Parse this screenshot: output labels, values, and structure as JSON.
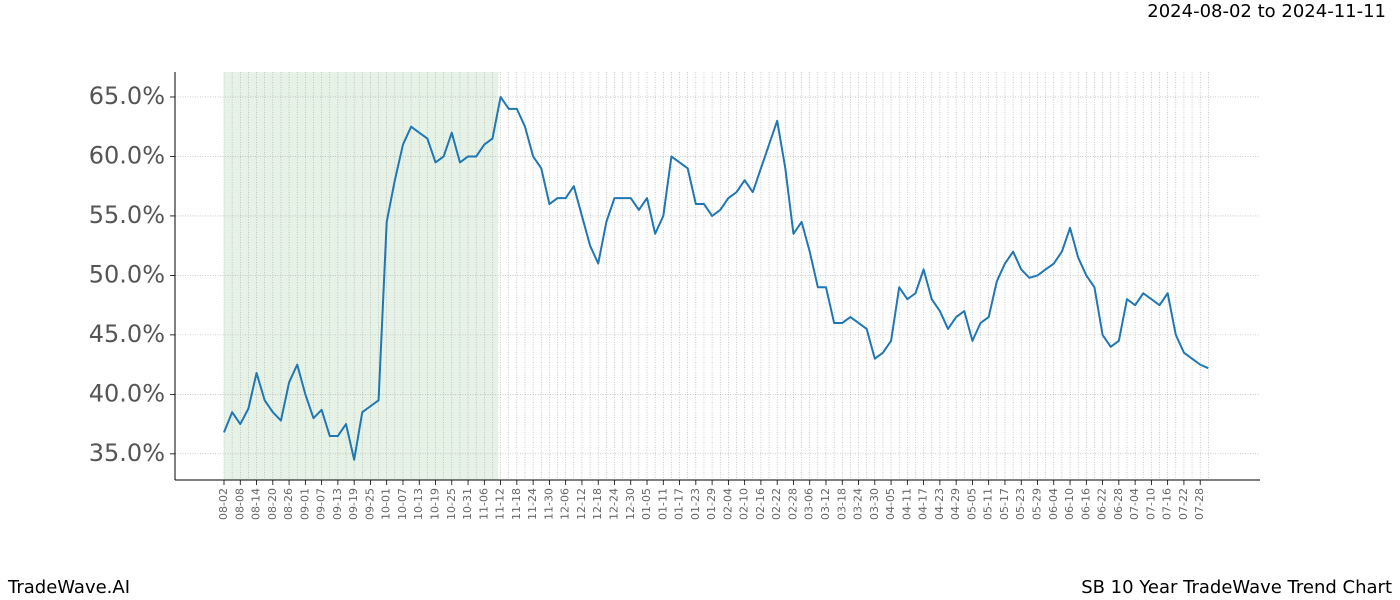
{
  "chart_data": {
    "type": "line",
    "subtitle": "2024-08-02 to 2024-11-11",
    "footer_left": "TradeWave.AI",
    "footer_right": "SB 10 Year TradeWave Trend Chart",
    "categories": [
      "08-02",
      null,
      "08-08",
      null,
      "08-14",
      null,
      "08-20",
      null,
      "08-26",
      null,
      "09-01",
      null,
      "09-07",
      null,
      "09-13",
      null,
      "09-19",
      null,
      "09-25",
      null,
      "10-01",
      null,
      "10-07",
      null,
      "10-13",
      null,
      "10-19",
      null,
      "10-25",
      null,
      "10-31",
      null,
      "11-06",
      null,
      "11-12",
      null,
      "11-18",
      null,
      "11-24",
      null,
      "11-30",
      null,
      "12-06",
      null,
      "12-12",
      null,
      "12-18",
      null,
      "12-24",
      null,
      "12-30",
      null,
      "01-05",
      null,
      "01-11",
      null,
      "01-17",
      null,
      "01-23",
      null,
      "01-29",
      null,
      "02-04",
      null,
      "02-10",
      null,
      "02-16",
      null,
      "02-22",
      null,
      "02-28",
      null,
      "03-06",
      null,
      "03-12",
      null,
      "03-18",
      null,
      "03-24",
      null,
      "03-30",
      null,
      "04-05",
      null,
      "04-11",
      null,
      "04-17",
      null,
      "04-23",
      null,
      "04-29",
      null,
      "05-05",
      null,
      "05-11",
      null,
      "05-17",
      null,
      "05-23",
      null,
      "05-29",
      null,
      "06-04",
      null,
      "06-10",
      null,
      "06-16",
      null,
      "06-22",
      null,
      "06-28",
      null,
      "07-04",
      null,
      "07-10",
      null,
      "07-16",
      null,
      "07-22",
      null,
      "07-28",
      null
    ],
    "series": [
      {
        "name": "trend",
        "color": "#1f77b4",
        "values": [
          36.8,
          38.5,
          37.5,
          38.8,
          41.8,
          39.5,
          38.5,
          37.8,
          41,
          42.5,
          40,
          38,
          38.7,
          36.5,
          36.5,
          37.5,
          34.5,
          38.5,
          39,
          39.5,
          54.5,
          58,
          61,
          62.5,
          62,
          61.5,
          59.5,
          60,
          62,
          59.5,
          60,
          60,
          61,
          61.5,
          65,
          64,
          64,
          62.5,
          60,
          59,
          56,
          56.5,
          56.5,
          57.5,
          55,
          52.5,
          51,
          54.5,
          56.5,
          56.5,
          56.5,
          55.5,
          56.5,
          53.5,
          55,
          60,
          59.5,
          59,
          56,
          56,
          55,
          55.5,
          56.5,
          57,
          58,
          57,
          59,
          61,
          63,
          59,
          53.5,
          54.5,
          52,
          49,
          49,
          46,
          46,
          46.5,
          46,
          45.5,
          43,
          43.5,
          44.5,
          49,
          48,
          48.5,
          50.5,
          48,
          47,
          45.5,
          46.5,
          47,
          44.5,
          46,
          46.5,
          49.5,
          51,
          52,
          50.5,
          49.8,
          50,
          50.5,
          51,
          52,
          54,
          51.5,
          50,
          49,
          45,
          44,
          44.5,
          48,
          47.5,
          48.5,
          48,
          47.5,
          48.5,
          45,
          43.5,
          43,
          42.5,
          42.2
        ]
      }
    ],
    "highlight_range": [
      0,
      33.7
    ],
    "highlight_color": "#e6f2e6",
    "ylim": [
      32.8,
      67.1
    ],
    "yticks": [
      {
        "value": 35,
        "label": "35.0%"
      },
      {
        "value": 40,
        "label": "40.0%"
      },
      {
        "value": 45,
        "label": "45.0%"
      },
      {
        "value": 50,
        "label": "50.0%"
      },
      {
        "value": 55,
        "label": "55.0%"
      },
      {
        "value": 60,
        "label": "60.0%"
      },
      {
        "value": 65,
        "label": "65.0%"
      }
    ],
    "grid": true
  }
}
